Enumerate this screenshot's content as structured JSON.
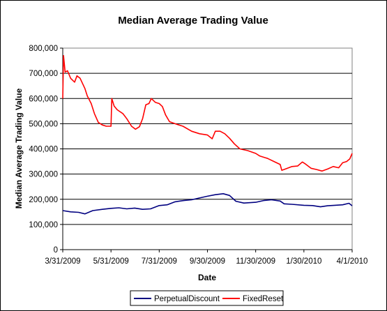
{
  "chart_data": {
    "type": "line",
    "title": "Median Average Trading Value",
    "xlabel": "Date",
    "ylabel": "Median Average Trading Value",
    "xlim": [
      "2009-03-31",
      "2010-04-01"
    ],
    "ylim": [
      0,
      800000
    ],
    "y_ticks": [
      "0",
      "100,000",
      "200,000",
      "300,000",
      "400,000",
      "500,000",
      "600,000",
      "700,000",
      "800,000"
    ],
    "x_ticks": [
      "3/31/2009",
      "5/31/2009",
      "7/31/2009",
      "9/30/2009",
      "11/30/2009",
      "1/30/2010",
      "4/1/2010"
    ],
    "grid": "horizontal",
    "legend_position": "bottom",
    "series": [
      {
        "name": "PerpetualDiscount",
        "color": "#000080",
        "points": [
          [
            "2009-03-31",
            155000
          ],
          [
            "2009-04-10",
            150000
          ],
          [
            "2009-04-20",
            148000
          ],
          [
            "2009-04-28",
            142000
          ],
          [
            "2009-05-08",
            155000
          ],
          [
            "2009-05-20",
            160000
          ],
          [
            "2009-05-31",
            164000
          ],
          [
            "2009-06-10",
            166000
          ],
          [
            "2009-06-20",
            162000
          ],
          [
            "2009-06-30",
            165000
          ],
          [
            "2009-07-10",
            160000
          ],
          [
            "2009-07-20",
            162000
          ],
          [
            "2009-07-31",
            175000
          ],
          [
            "2009-08-10",
            178000
          ],
          [
            "2009-08-20",
            190000
          ],
          [
            "2009-08-31",
            195000
          ],
          [
            "2009-09-10",
            198000
          ],
          [
            "2009-09-20",
            205000
          ],
          [
            "2009-09-30",
            212000
          ],
          [
            "2009-10-10",
            218000
          ],
          [
            "2009-10-20",
            222000
          ],
          [
            "2009-10-28",
            215000
          ],
          [
            "2009-11-05",
            192000
          ],
          [
            "2009-11-15",
            185000
          ],
          [
            "2009-11-30",
            188000
          ],
          [
            "2009-12-10",
            195000
          ],
          [
            "2009-12-20",
            198000
          ],
          [
            "2009-12-31",
            193000
          ],
          [
            "2010-01-05",
            182000
          ],
          [
            "2010-01-15",
            180000
          ],
          [
            "2010-01-30",
            176000
          ],
          [
            "2010-02-10",
            175000
          ],
          [
            "2010-02-20",
            170000
          ],
          [
            "2010-03-01",
            174000
          ],
          [
            "2010-03-10",
            176000
          ],
          [
            "2010-03-20",
            178000
          ],
          [
            "2010-03-28",
            184000
          ],
          [
            "2010-04-01",
            174000
          ]
        ]
      },
      {
        "name": "FixedReset",
        "color": "#ff0000",
        "points": [
          [
            "2009-03-31",
            600000
          ],
          [
            "2009-04-01",
            770000
          ],
          [
            "2009-04-03",
            705000
          ],
          [
            "2009-04-06",
            710000
          ],
          [
            "2009-04-10",
            680000
          ],
          [
            "2009-04-15",
            665000
          ],
          [
            "2009-04-18",
            690000
          ],
          [
            "2009-04-22",
            680000
          ],
          [
            "2009-04-28",
            640000
          ],
          [
            "2009-05-01",
            610000
          ],
          [
            "2009-05-06",
            580000
          ],
          [
            "2009-05-10",
            540000
          ],
          [
            "2009-05-15",
            505000
          ],
          [
            "2009-05-20",
            495000
          ],
          [
            "2009-05-25",
            490000
          ],
          [
            "2009-05-31",
            490000
          ],
          [
            "2009-06-01",
            600000
          ],
          [
            "2009-06-04",
            570000
          ],
          [
            "2009-06-08",
            555000
          ],
          [
            "2009-06-15",
            540000
          ],
          [
            "2009-06-20",
            520000
          ],
          [
            "2009-06-26",
            490000
          ],
          [
            "2009-07-01",
            478000
          ],
          [
            "2009-07-06",
            488000
          ],
          [
            "2009-07-10",
            520000
          ],
          [
            "2009-07-14",
            575000
          ],
          [
            "2009-07-18",
            580000
          ],
          [
            "2009-07-21",
            600000
          ],
          [
            "2009-07-26",
            585000
          ],
          [
            "2009-07-31",
            580000
          ],
          [
            "2009-08-04",
            568000
          ],
          [
            "2009-08-08",
            535000
          ],
          [
            "2009-08-13",
            508000
          ],
          [
            "2009-08-20",
            500000
          ],
          [
            "2009-08-30",
            490000
          ],
          [
            "2009-09-10",
            470000
          ],
          [
            "2009-09-20",
            460000
          ],
          [
            "2009-09-30",
            455000
          ],
          [
            "2009-10-06",
            440000
          ],
          [
            "2009-10-10",
            470000
          ],
          [
            "2009-10-16",
            470000
          ],
          [
            "2009-10-22",
            460000
          ],
          [
            "2009-10-28",
            442000
          ],
          [
            "2009-11-03",
            420000
          ],
          [
            "2009-11-10",
            400000
          ],
          [
            "2009-11-20",
            393000
          ],
          [
            "2009-11-30",
            382000
          ],
          [
            "2009-12-05",
            372000
          ],
          [
            "2009-12-15",
            362000
          ],
          [
            "2009-12-25",
            347000
          ],
          [
            "2009-12-31",
            338000
          ],
          [
            "2010-01-02",
            315000
          ],
          [
            "2010-01-08",
            322000
          ],
          [
            "2010-01-15",
            330000
          ],
          [
            "2010-01-22",
            332000
          ],
          [
            "2010-01-28",
            348000
          ],
          [
            "2010-02-01",
            340000
          ],
          [
            "2010-02-08",
            323000
          ],
          [
            "2010-02-15",
            318000
          ],
          [
            "2010-02-22",
            312000
          ],
          [
            "2010-03-01",
            320000
          ],
          [
            "2010-03-08",
            330000
          ],
          [
            "2010-03-15",
            325000
          ],
          [
            "2010-03-20",
            345000
          ],
          [
            "2010-03-25",
            350000
          ],
          [
            "2010-03-29",
            360000
          ],
          [
            "2010-04-01",
            382000
          ]
        ]
      }
    ]
  }
}
